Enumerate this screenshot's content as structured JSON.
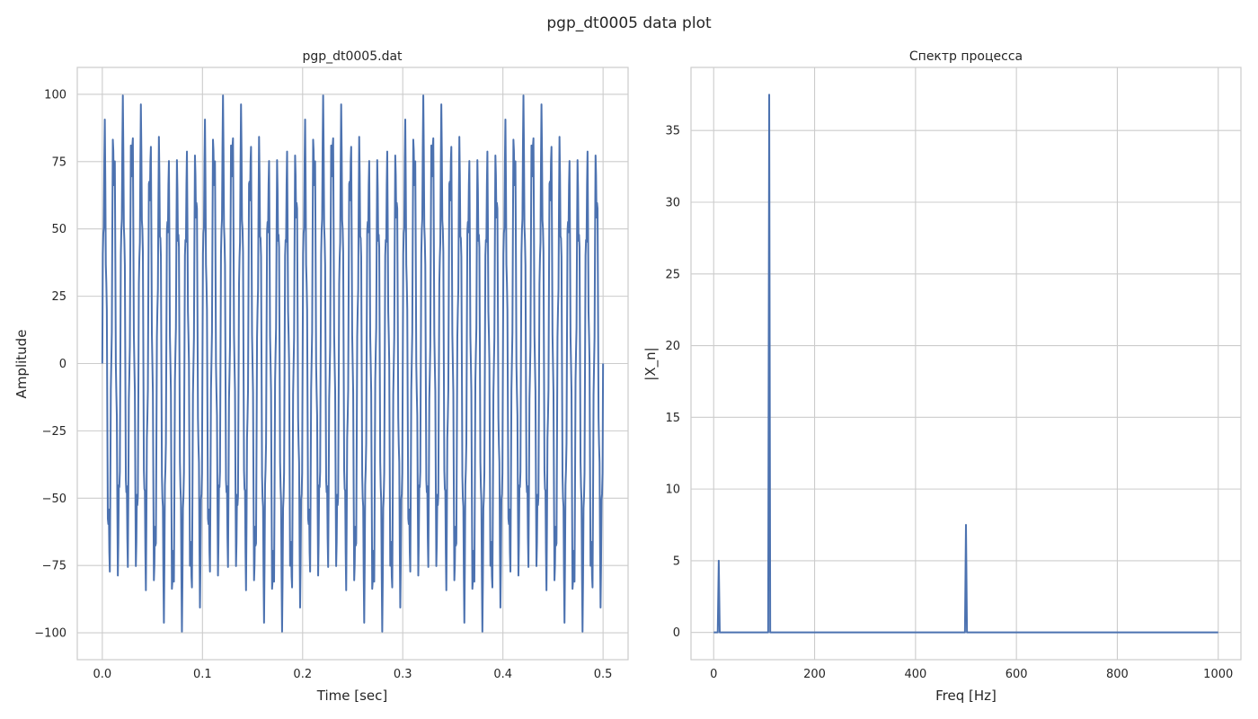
{
  "figure": {
    "suptitle": "pgp_dt0005 data plot"
  },
  "colors": {
    "line": "#4c72b0",
    "grid": "#cccccc",
    "axes_edge": "#cccccc",
    "text": "#262626"
  },
  "chart_data": [
    {
      "type": "line",
      "title": "pgp_dt0005.dat",
      "xlabel": "Time [sec]",
      "ylabel": "Amplitude",
      "xlim": [
        -0.025,
        0.525
      ],
      "ylim": [
        -110,
        110
      ],
      "xticks": [
        0.0,
        0.1,
        0.2,
        0.3,
        0.4,
        0.5
      ],
      "xtick_labels": [
        "0.0",
        "0.1",
        "0.2",
        "0.3",
        "0.4",
        "0.5"
      ],
      "yticks": [
        -100,
        -75,
        -50,
        -25,
        0,
        25,
        50,
        75,
        100
      ],
      "ytick_labels": [
        "−100",
        "−75",
        "−50",
        "−25",
        "0",
        "25",
        "50",
        "75",
        "100"
      ],
      "grid": true,
      "signal": {
        "description_components": [
          {
            "freq_hz": 10,
            "amplitude": 10
          },
          {
            "freq_hz": 110,
            "amplitude": 75
          },
          {
            "freq_hz": 500,
            "amplitude": 15
          }
        ],
        "dt": 0.0005,
        "t_start": 0.0,
        "t_end": 0.5
      },
      "series": [
        {
          "values_ref": "signal"
        }
      ]
    },
    {
      "type": "line",
      "title": "Спектр процесса",
      "xlabel": "Freq [Hz]",
      "ylabel": "|X_n|",
      "xlim": [
        -45,
        1045
      ],
      "ylim": [
        -1.9,
        39.4
      ],
      "xticks": [
        0,
        200,
        400,
        600,
        800,
        1000
      ],
      "xtick_labels": [
        "0",
        "200",
        "400",
        "600",
        "800",
        "1000"
      ],
      "yticks": [
        0,
        5,
        10,
        15,
        20,
        25,
        30,
        35
      ],
      "ytick_labels": [
        "0",
        "5",
        "10",
        "15",
        "20",
        "25",
        "30",
        "35"
      ],
      "grid": true,
      "x_range": [
        0,
        1000
      ],
      "peaks": [
        {
          "freq_hz": 10,
          "value": 5.0
        },
        {
          "freq_hz": 110,
          "value": 37.5
        },
        {
          "freq_hz": 500,
          "value": 7.5
        }
      ],
      "baseline": 0
    }
  ]
}
